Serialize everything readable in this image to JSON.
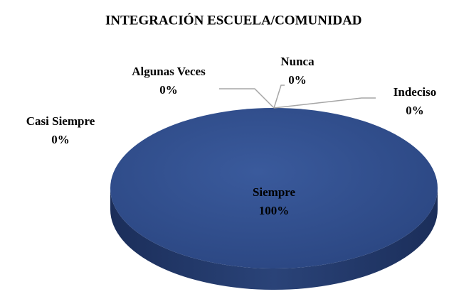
{
  "chart_data": {
    "type": "pie",
    "title": "INTEGRACIÓN ESCUELA/COMUNIDAD",
    "categories": [
      "Siempre",
      "Casi Siempre",
      "Algunas Veces",
      "Nunca",
      "Indeciso"
    ],
    "values": [
      100,
      0,
      0,
      0,
      0
    ],
    "value_labels": [
      "100%",
      "0%",
      "0%",
      "0%",
      "0%"
    ],
    "colors": [
      "#2f4f8f",
      "#c0504d",
      "#9bbb59",
      "#8064a2",
      "#4bacc6"
    ]
  }
}
